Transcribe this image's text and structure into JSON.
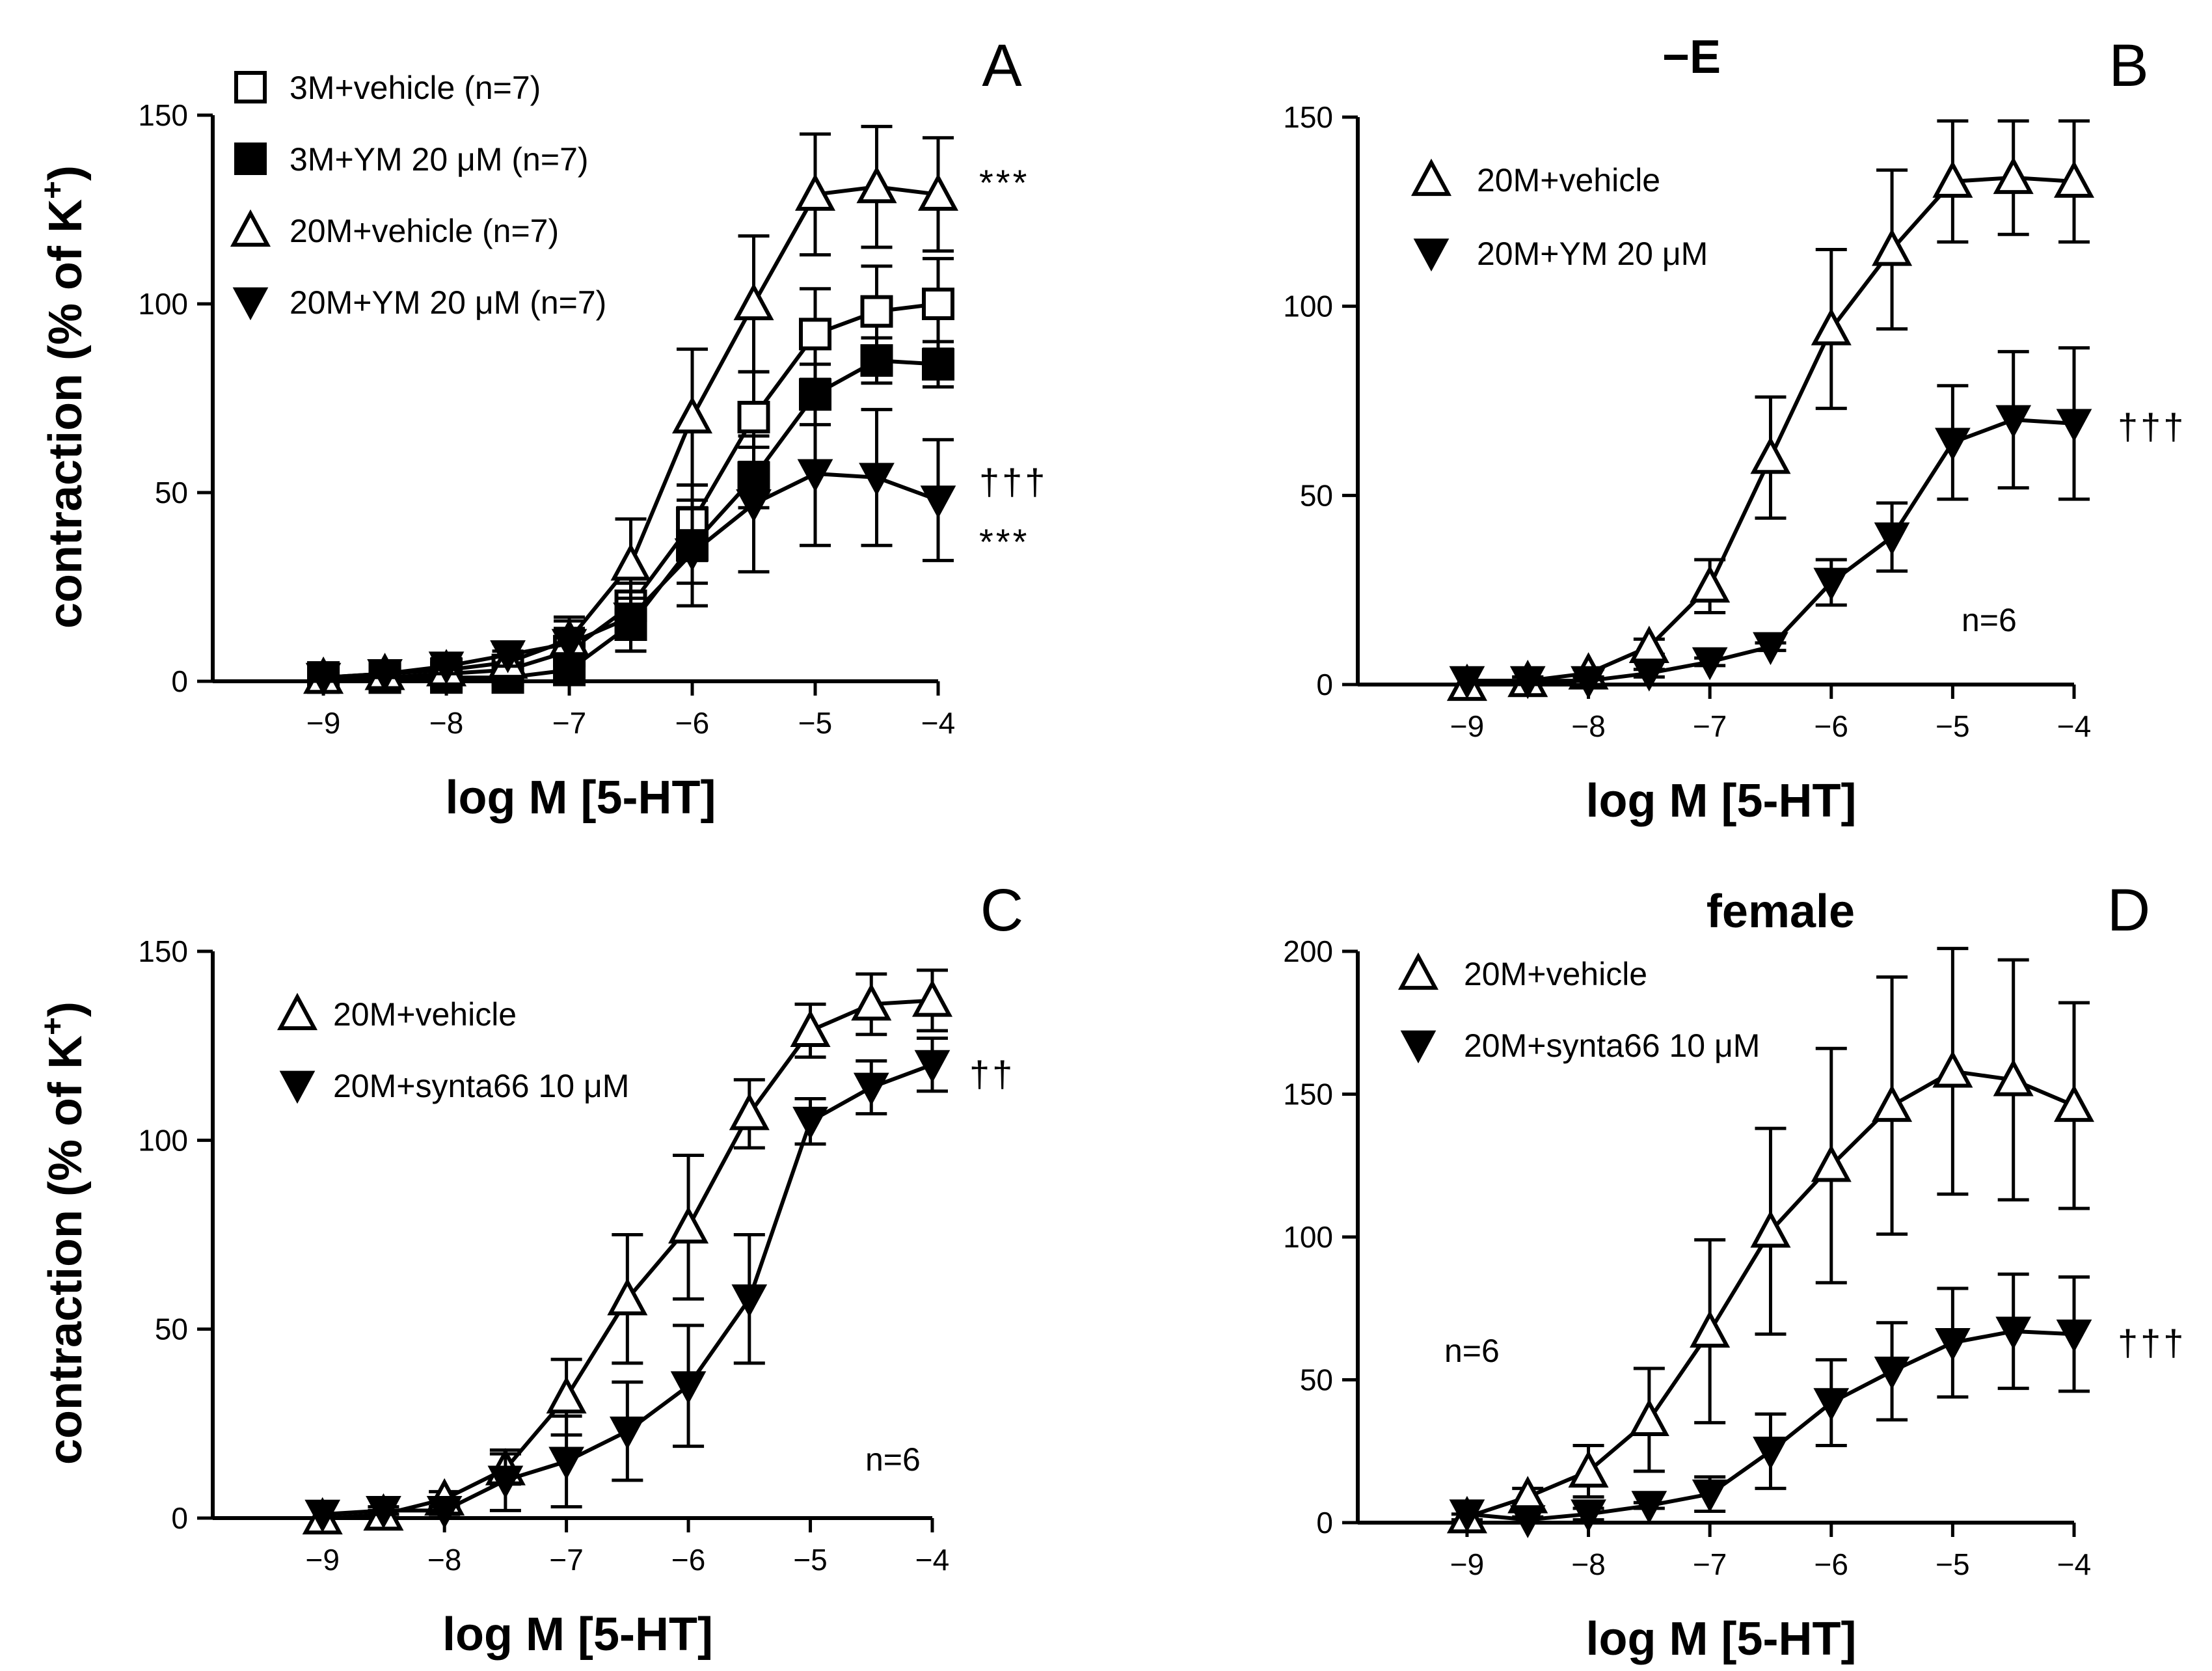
{
  "colors": {
    "ink": "#000000",
    "paper": "#ffffff"
  },
  "chart_data": [
    {
      "panel": "A",
      "type": "line",
      "title": "",
      "xlabel": "log M [5-HT]",
      "ylabel_main": "contraction (% of K",
      "ylabel_sup": "+",
      "ylabel_close": ")",
      "xlim": [
        -9.9,
        -4
      ],
      "ylim": [
        0,
        150
      ],
      "xticks": [
        -9,
        -8,
        -7,
        -6,
        -5,
        -4
      ],
      "xtick_labels": [
        "−9",
        "−8",
        "−7",
        "−6",
        "−5",
        "−4"
      ],
      "yticks": [
        0,
        50,
        100,
        150
      ],
      "ytick_labels": [
        "0",
        "50",
        "100",
        "150"
      ],
      "n_label": "",
      "series": [
        {
          "name": "3M+vehicle (n=7)",
          "marker": "square-open",
          "x": [
            -9,
            -8.5,
            -8,
            -7.5,
            -7,
            -6.5,
            -6,
            -5.5,
            -5,
            -4.5,
            -4
          ],
          "y": [
            1,
            1,
            2,
            3,
            8,
            20,
            42,
            70,
            92,
            98,
            100
          ],
          "err": [
            1,
            1,
            2,
            3,
            6,
            8,
            10,
            12,
            12,
            12,
            12
          ]
        },
        {
          "name": "3M+YM 20 μM (n=7)",
          "marker": "square-filled",
          "x": [
            -9,
            -8.5,
            -8,
            -7.5,
            -7,
            -6.5,
            -6,
            -5.5,
            -5,
            -4.5,
            -4
          ],
          "y": [
            1,
            1,
            1,
            1,
            3,
            15,
            36,
            54,
            76,
            85,
            84
          ],
          "err": [
            1,
            1,
            1,
            1,
            3,
            7,
            10,
            8,
            8,
            6,
            6
          ]
        },
        {
          "name": "20M+vehicle (n=7)",
          "marker": "triangle-up-open",
          "x": [
            -9,
            -8.5,
            -8,
            -7.5,
            -7,
            -6.5,
            -6,
            -5.5,
            -5,
            -4.5,
            -4
          ],
          "y": [
            1,
            2,
            3,
            5,
            11,
            31,
            70,
            100,
            129,
            131,
            129
          ],
          "err": [
            1,
            1,
            2,
            3,
            6,
            12,
            18,
            18,
            16,
            16,
            15
          ]
        },
        {
          "name": "20M+YM 20 μM (n=7)",
          "marker": "triangle-down-filled",
          "x": [
            -9,
            -8.5,
            -8,
            -7.5,
            -7,
            -6.5,
            -6,
            -5.5,
            -5,
            -4.5,
            -4
          ],
          "y": [
            1,
            2,
            4,
            7,
            10,
            17,
            34,
            47,
            55,
            54,
            48
          ],
          "err": [
            1,
            1,
            2,
            3,
            6,
            9,
            14,
            18,
            19,
            18,
            16
          ]
        }
      ],
      "annotations": [
        {
          "text": "***",
          "x": -4,
          "y": 129
        },
        {
          "text": "†††",
          "x": -4,
          "y": 50
        },
        {
          "text": "***",
          "x": -4,
          "y": 34
        }
      ]
    },
    {
      "panel": "B",
      "type": "line",
      "title": "−E",
      "xlabel": "log M [5-HT]",
      "ylabel_main": "",
      "ylabel_sup": "",
      "ylabel_close": "",
      "xlim": [
        -9.9,
        -4
      ],
      "ylim": [
        0,
        150
      ],
      "xticks": [
        -9,
        -8,
        -7,
        -6,
        -5,
        -4
      ],
      "xtick_labels": [
        "−9",
        "−8",
        "−7",
        "−6",
        "−5",
        "−4"
      ],
      "yticks": [
        0,
        50,
        100,
        150
      ],
      "ytick_labels": [
        "0",
        "50",
        "100",
        "150"
      ],
      "n_label": "n=6",
      "series": [
        {
          "name": "20M+vehicle",
          "marker": "triangle-up-open",
          "x": [
            -9,
            -8.5,
            -8,
            -7.5,
            -7,
            -6.5,
            -6,
            -5.5,
            -5,
            -4.5,
            -4
          ],
          "y": [
            0,
            1,
            3,
            10,
            26,
            60,
            94,
            115,
            133,
            134,
            133
          ],
          "err": [
            0,
            1,
            1,
            2,
            7,
            16,
            21,
            21,
            16,
            15,
            16
          ]
        },
        {
          "name": "20M+YM 20 μM",
          "marker": "triangle-down-filled",
          "x": [
            -9,
            -8.5,
            -8,
            -7.5,
            -7,
            -6.5,
            -6,
            -5.5,
            -5,
            -4.5,
            -4
          ],
          "y": [
            1,
            1,
            1,
            3,
            6,
            10,
            27,
            39,
            64,
            70,
            69
          ],
          "err": [
            0,
            1,
            1,
            1,
            1,
            1,
            6,
            9,
            15,
            18,
            20
          ]
        }
      ],
      "annotations": [
        {
          "text": "†††",
          "x": -4,
          "y": 68
        }
      ]
    },
    {
      "panel": "C",
      "type": "line",
      "title": "",
      "xlabel": "log M [5-HT]",
      "ylabel_main": "contraction (% of K",
      "ylabel_sup": "+",
      "ylabel_close": ")",
      "xlim": [
        -9.9,
        -4
      ],
      "ylim": [
        0,
        150
      ],
      "xticks": [
        -9,
        -8,
        -7,
        -6,
        -5,
        -4
      ],
      "xtick_labels": [
        "−9",
        "−8",
        "−7",
        "−6",
        "−5",
        "−4"
      ],
      "yticks": [
        0,
        50,
        100,
        150
      ],
      "ytick_labels": [
        "0",
        "50",
        "100",
        "150"
      ],
      "n_label": "n=6",
      "series": [
        {
          "name": "20M+vehicle",
          "marker": "triangle-up-open",
          "x": [
            -9,
            -8.5,
            -8,
            -7.5,
            -7,
            -6.5,
            -6,
            -5.5,
            -5,
            -4.5,
            -4
          ],
          "y": [
            0,
            1,
            5,
            13,
            32,
            58,
            77,
            107,
            129,
            136,
            137
          ],
          "err": [
            0,
            1,
            2,
            4,
            10,
            17,
            19,
            9,
            7,
            8,
            8
          ]
        },
        {
          "name": "20M+synta66 10 μM",
          "marker": "triangle-down-filled",
          "x": [
            -9,
            -8.5,
            -8,
            -7.5,
            -7,
            -6.5,
            -6,
            -5.5,
            -5,
            -4.5,
            -4
          ],
          "y": [
            1,
            2,
            2,
            10,
            15,
            23,
            35,
            58,
            105,
            114,
            120
          ],
          "err": [
            0,
            1,
            1,
            8,
            12,
            13,
            16,
            17,
            6,
            7,
            7
          ]
        }
      ],
      "annotations": [
        {
          "text": "††",
          "x": -4,
          "y": 117
        }
      ]
    },
    {
      "panel": "D",
      "type": "line",
      "title": "female",
      "xlabel": "log M [5-HT]",
      "ylabel_main": "",
      "ylabel_sup": "",
      "ylabel_close": "",
      "xlim": [
        -9.9,
        -4
      ],
      "ylim": [
        0,
        200
      ],
      "xticks": [
        -9,
        -8,
        -7,
        -6,
        -5,
        -4
      ],
      "xtick_labels": [
        "−9",
        "−8",
        "−7",
        "−6",
        "−5",
        "−4"
      ],
      "yticks": [
        0,
        50,
        100,
        150,
        200
      ],
      "ytick_labels": [
        "0",
        "50",
        "100",
        "150",
        "200"
      ],
      "n_label": "n=6",
      "series": [
        {
          "name": "20M+vehicle",
          "marker": "triangle-up-open",
          "x": [
            -9,
            -8.5,
            -8,
            -7.5,
            -7,
            -6.5,
            -6,
            -5.5,
            -5,
            -4.5,
            -4
          ],
          "y": [
            2,
            9,
            18,
            36,
            67,
            102,
            125,
            146,
            158,
            155,
            146
          ],
          "err": [
            1,
            3,
            9,
            18,
            32,
            36,
            41,
            45,
            43,
            42,
            36
          ]
        },
        {
          "name": "20M+synta66 10 μM",
          "marker": "triangle-down-filled",
          "x": [
            -9,
            -8.5,
            -8,
            -7.5,
            -7,
            -6.5,
            -6,
            -5.5,
            -5,
            -4.5,
            -4
          ],
          "y": [
            3,
            1,
            3,
            6,
            10,
            25,
            42,
            53,
            63,
            67,
            66
          ],
          "err": [
            0,
            1,
            2,
            1,
            6,
            13,
            15,
            17,
            19,
            20,
            20
          ]
        }
      ],
      "annotations": [
        {
          "text": "†††",
          "x": -4,
          "y": 63
        }
      ]
    }
  ]
}
